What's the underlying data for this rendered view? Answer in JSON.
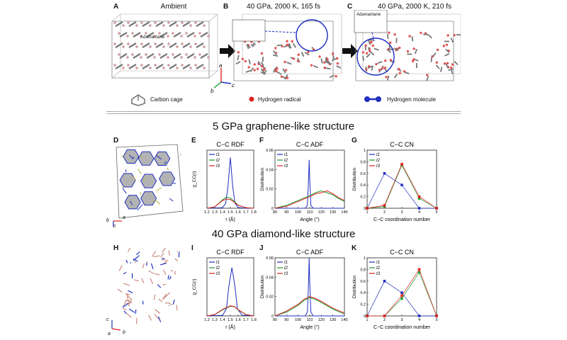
{
  "top_row": {
    "panels": [
      {
        "letter": "A",
        "title": "Ambient"
      },
      {
        "letter": "B",
        "title": "40 GPa, 2000 K, 165 fs",
        "inset": "Adamantane"
      },
      {
        "letter": "C",
        "title": "40 GPa, 2000 K, 210 fs",
        "inset": "Adamantane"
      }
    ],
    "legend": {
      "carbon_cage": "Carbon cage",
      "hydrogen_radical": "Hydrogen radical",
      "hydrogen_molecule": "Hydrogen molecule"
    },
    "axes": {
      "a": "a",
      "b": "b",
      "c": "c"
    }
  },
  "section1": {
    "title": "5 GPa graphene-like structure",
    "panel_letters": [
      "D",
      "E",
      "F",
      "G"
    ],
    "struct_axes": {
      "b": "b",
      "c": "c",
      "a": "a"
    }
  },
  "section2": {
    "title": "40 GPa diamond-like structure",
    "panel_letters": [
      "H",
      "I",
      "J",
      "K"
    ],
    "struct_axes": {
      "c": "c",
      "a": "a",
      "b": "b"
    }
  },
  "colors": {
    "t1": "#1f2fbf",
    "t2": "#1a9a2a",
    "t3": "#e02020"
  },
  "chart_data": [
    {
      "id": "E",
      "type": "line",
      "title": "C−C RDF",
      "xlabel": "r (Å)",
      "ylabel": "g_CC(r)",
      "xlim": [
        1.2,
        1.8
      ],
      "xticks": [
        "1.2",
        "1.3",
        "1.4",
        "1.5",
        "1.6",
        "1.7",
        "1.8"
      ],
      "yticks": [],
      "legend": [
        "t1",
        "t2",
        "t3"
      ],
      "series": [
        {
          "name": "t1",
          "x": [
            1.2,
            1.4,
            1.44,
            1.47,
            1.5,
            1.53,
            1.56,
            1.6,
            1.7,
            1.8
          ],
          "y": [
            0,
            0.2,
            2,
            9,
            21,
            9,
            2,
            0.3,
            0,
            0
          ]
        },
        {
          "name": "t2",
          "x": [
            1.2,
            1.3,
            1.4,
            1.45,
            1.5,
            1.55,
            1.6,
            1.7,
            1.8
          ],
          "y": [
            0,
            0.5,
            3.5,
            4.6,
            4.2,
            2.8,
            1.3,
            0.2,
            0
          ]
        },
        {
          "name": "t3",
          "x": [
            1.2,
            1.3,
            1.4,
            1.45,
            1.5,
            1.55,
            1.6,
            1.7,
            1.8
          ],
          "y": [
            0,
            0.6,
            3.2,
            3.8,
            3.6,
            2.5,
            1.2,
            0.2,
            0
          ]
        }
      ],
      "ylim": [
        0,
        24
      ]
    },
    {
      "id": "F",
      "type": "line",
      "title": "C−C ADF",
      "xlabel": "Angle (°)",
      "ylabel": "Distribution",
      "xlim": [
        80,
        140
      ],
      "ylim": [
        0,
        0.06
      ],
      "xticks": [
        "80",
        "90",
        "100",
        "110",
        "120",
        "130",
        "140"
      ],
      "yticks": [
        "0",
        "0.02",
        "0.04",
        "0.06"
      ],
      "legend": [
        "t1",
        "t2",
        "t3"
      ],
      "series": [
        {
          "name": "t1",
          "x": [
            80,
            106,
            108,
            109,
            109.5,
            110,
            111,
            113,
            140
          ],
          "y": [
            0,
            0,
            0.003,
            0.03,
            0.05,
            0.03,
            0.003,
            0,
            0
          ]
        },
        {
          "name": "t2",
          "x": [
            80,
            90,
            100,
            110,
            115,
            120,
            125,
            130,
            135,
            140
          ],
          "y": [
            0,
            0.003,
            0.008,
            0.013,
            0.016,
            0.018,
            0.016,
            0.014,
            0.01,
            0.007
          ]
        },
        {
          "name": "t3",
          "x": [
            80,
            90,
            100,
            110,
            115,
            120,
            125,
            130,
            135,
            140
          ],
          "y": [
            0,
            0.002,
            0.007,
            0.012,
            0.015,
            0.016,
            0.018,
            0.015,
            0.011,
            0.008
          ]
        }
      ]
    },
    {
      "id": "G",
      "type": "line",
      "title": "C−C CN",
      "xlabel": "C−C coordination number",
      "ylabel": "Distribution",
      "xlim": [
        1,
        5
      ],
      "ylim": [
        0,
        1
      ],
      "xticks": [
        "1",
        "2",
        "3",
        "4",
        "5"
      ],
      "yticks": [
        "0",
        "0.2",
        "0.4",
        "0.6",
        "0.8",
        "1"
      ],
      "legend": [
        "t1",
        "t2",
        "t3"
      ],
      "series": [
        {
          "name": "t1",
          "x": [
            1,
            2,
            3,
            4,
            5
          ],
          "y": [
            0,
            0.6,
            0.4,
            0,
            0
          ]
        },
        {
          "name": "t2",
          "x": [
            1,
            2,
            3,
            4,
            5
          ],
          "y": [
            0,
            0.03,
            0.74,
            0.17,
            0
          ]
        },
        {
          "name": "t3",
          "x": [
            1,
            2,
            3,
            4,
            5
          ],
          "y": [
            0,
            0.05,
            0.76,
            0.2,
            0
          ]
        }
      ]
    },
    {
      "id": "I",
      "type": "line",
      "title": "C−C RDF",
      "xlabel": "r (Å)",
      "ylabel": "g_CC(r)",
      "xlim": [
        1.2,
        1.8
      ],
      "xticks": [
        "1.2",
        "1.3",
        "1.4",
        "1.5",
        "1.6",
        "1.7",
        "1.8"
      ],
      "yticks": [],
      "legend": [
        "t1",
        "t2",
        "t3"
      ],
      "series": [
        {
          "name": "t1",
          "x": [
            1.2,
            1.4,
            1.45,
            1.48,
            1.52,
            1.56,
            1.59,
            1.65,
            1.8
          ],
          "y": [
            0,
            0.2,
            3,
            12,
            20,
            12,
            3,
            0.3,
            0
          ]
        },
        {
          "name": "t2",
          "x": [
            1.2,
            1.3,
            1.4,
            1.5,
            1.55,
            1.6,
            1.7,
            1.8
          ],
          "y": [
            0,
            0.5,
            2.5,
            4,
            3.8,
            2.5,
            0.5,
            0
          ]
        },
        {
          "name": "t3",
          "x": [
            1.2,
            1.3,
            1.4,
            1.5,
            1.55,
            1.6,
            1.7,
            1.8
          ],
          "y": [
            0,
            0.6,
            2.7,
            4.2,
            3.9,
            2.6,
            0.6,
            0
          ]
        }
      ],
      "ylim": [
        0,
        24
      ]
    },
    {
      "id": "J",
      "type": "line",
      "title": "C−C ADF",
      "xlabel": "Angle (°)",
      "ylabel": "Distribution",
      "xlim": [
        80,
        140
      ],
      "ylim": [
        0,
        0.06
      ],
      "xticks": [
        "80",
        "90",
        "100",
        "110",
        "120",
        "130",
        "140"
      ],
      "yticks": [
        "0",
        "0.02",
        "0.04",
        "0.06"
      ],
      "legend": [
        "t1",
        "t2",
        "t3"
      ],
      "series": [
        {
          "name": "t1",
          "x": [
            80,
            106,
            108,
            109,
            109.5,
            110,
            111,
            113,
            140
          ],
          "y": [
            0,
            0,
            0.004,
            0.035,
            0.06,
            0.035,
            0.004,
            0,
            0
          ]
        },
        {
          "name": "t2",
          "x": [
            80,
            90,
            100,
            105,
            110,
            115,
            120,
            130,
            140
          ],
          "y": [
            0,
            0.004,
            0.011,
            0.016,
            0.019,
            0.017,
            0.014,
            0.007,
            0.002
          ]
        },
        {
          "name": "t3",
          "x": [
            80,
            90,
            100,
            105,
            110,
            115,
            120,
            130,
            140
          ],
          "y": [
            0,
            0.005,
            0.012,
            0.017,
            0.02,
            0.018,
            0.015,
            0.008,
            0.003
          ]
        }
      ]
    },
    {
      "id": "K",
      "type": "line",
      "title": "C−C CN",
      "xlabel": "C−C coordination number",
      "ylabel": "Distribution",
      "xlim": [
        1,
        5
      ],
      "ylim": [
        0,
        1
      ],
      "xticks": [
        "1",
        "2",
        "3",
        "4",
        "5"
      ],
      "yticks": [
        "0",
        "0.2",
        "0.4",
        "0.6",
        "0.8",
        "1"
      ],
      "legend": [
        "t1",
        "t2",
        "t3"
      ],
      "series": [
        {
          "name": "t1",
          "x": [
            1,
            2,
            3,
            4,
            5
          ],
          "y": [
            0,
            0.6,
            0.4,
            0,
            0
          ]
        },
        {
          "name": "t2",
          "x": [
            1,
            2,
            3,
            4,
            5
          ],
          "y": [
            0,
            0,
            0.3,
            0.75,
            0
          ]
        },
        {
          "name": "t3",
          "x": [
            1,
            2,
            3,
            4,
            5
          ],
          "y": [
            0,
            0,
            0.35,
            0.8,
            0
          ]
        }
      ]
    }
  ]
}
